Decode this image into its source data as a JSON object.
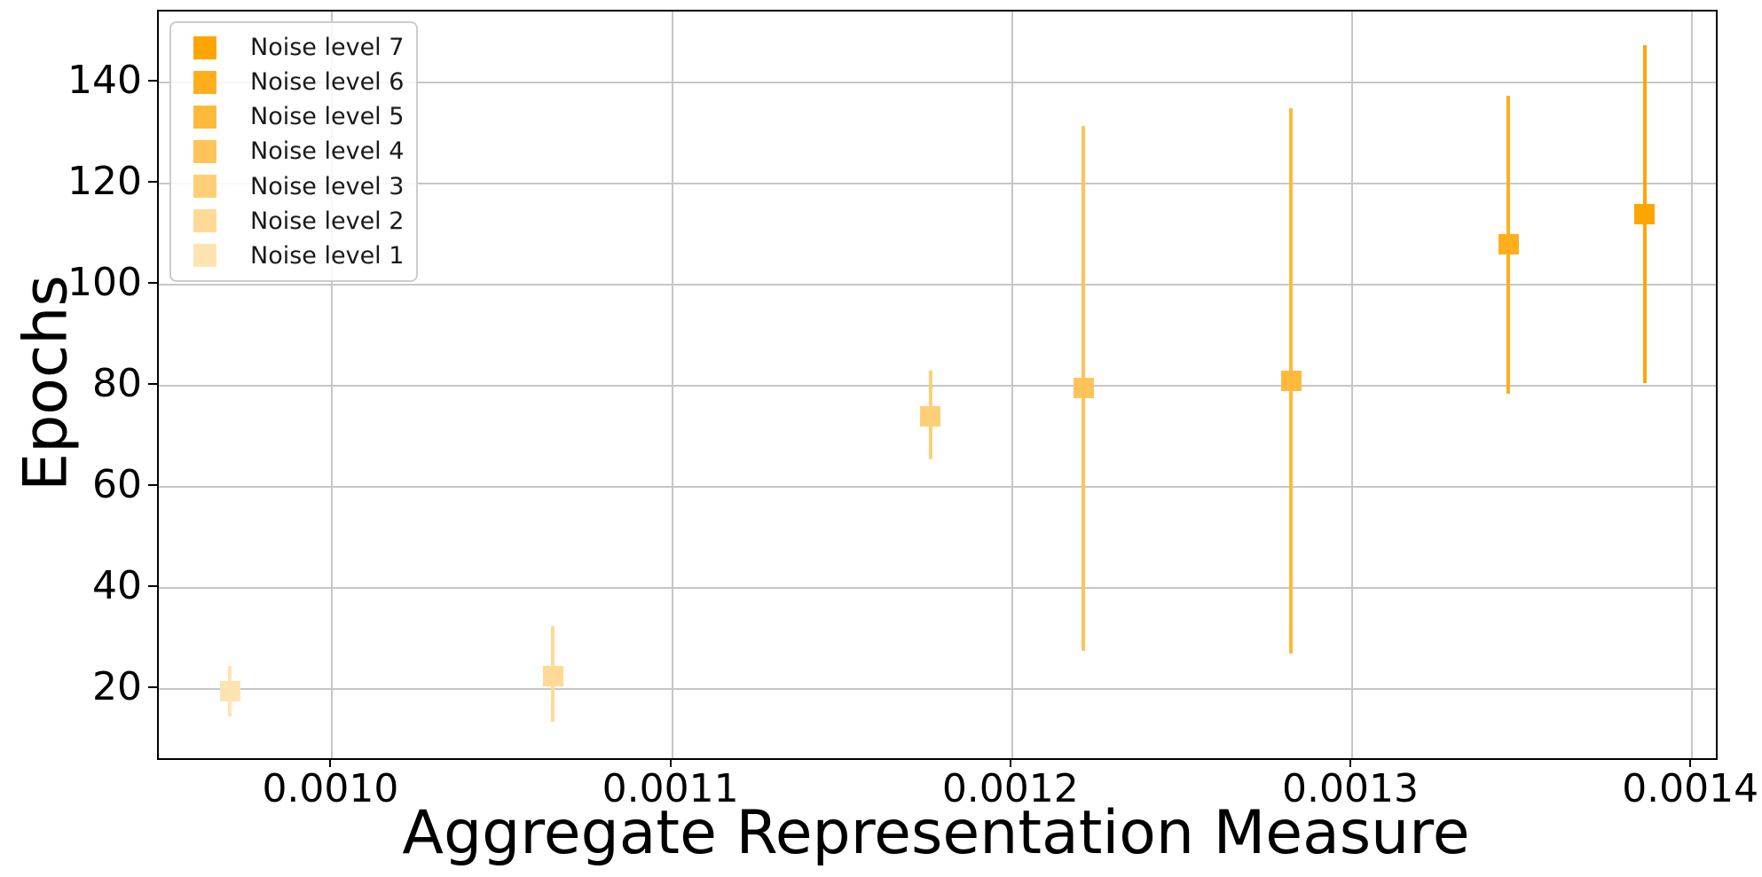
{
  "chart_data": {
    "type": "scatter",
    "title": "",
    "xlabel": "Aggregate Representation Measure",
    "ylabel": "Epochs",
    "grid": true,
    "legend_position": "upper-left",
    "xlim": [
      0.000949,
      0.001407
    ],
    "ylim": [
      6.3,
      154.1
    ],
    "x_tick_values": [
      0.001,
      0.0011,
      0.0012,
      0.0013,
      0.0014
    ],
    "x_tick_labels": [
      "0.0010",
      "0.0011",
      "0.0012",
      "0.0013",
      "0.0014"
    ],
    "y_tick_values": [
      20,
      40,
      60,
      80,
      100,
      120,
      140
    ],
    "y_tick_labels": [
      "20",
      "40",
      "60",
      "80",
      "100",
      "120",
      "140"
    ],
    "series": [
      {
        "name": "Noise level 1",
        "color": "#FFE4B2",
        "x": 0.00097,
        "y": 19.5,
        "y_low": 14.5,
        "y_high": 24.5
      },
      {
        "name": "Noise level 2",
        "color": "#FFD995",
        "x": 0.001065,
        "y": 22.5,
        "y_low": 13.5,
        "y_high": 32.5
      },
      {
        "name": "Noise level 3",
        "color": "#FFCF77",
        "x": 0.001176,
        "y": 74.0,
        "y_low": 65.5,
        "y_high": 83.0
      },
      {
        "name": "Noise level 4",
        "color": "#FFC459",
        "x": 0.001221,
        "y": 79.5,
        "y_low": 27.5,
        "y_high": 131.5
      },
      {
        "name": "Noise level 5",
        "color": "#FFBA3B",
        "x": 0.001282,
        "y": 81.0,
        "y_low": 27.0,
        "y_high": 135.0
      },
      {
        "name": "Noise level 6",
        "color": "#FFAF1E",
        "x": 0.001346,
        "y": 108.0,
        "y_low": 78.5,
        "y_high": 137.5
      },
      {
        "name": "Noise level 7",
        "color": "#FFA500",
        "x": 0.001386,
        "y": 114.0,
        "y_low": 80.5,
        "y_high": 147.5
      }
    ],
    "legend": {
      "items": [
        {
          "label": "Noise level 7",
          "color": "#FFA500"
        },
        {
          "label": "Noise level 6",
          "color": "#FFAF1E"
        },
        {
          "label": "Noise level 5",
          "color": "#FFBA3B"
        },
        {
          "label": "Noise level 4",
          "color": "#FFC459"
        },
        {
          "label": "Noise level 3",
          "color": "#FFCF77"
        },
        {
          "label": "Noise level 2",
          "color": "#FFD995"
        },
        {
          "label": "Noise level 1",
          "color": "#FFE4B2"
        }
      ]
    },
    "colors": {
      "grid": "#c6c6c6",
      "spine": "#000000",
      "background": "#ffffff",
      "base_accent": "#FFA500"
    }
  }
}
